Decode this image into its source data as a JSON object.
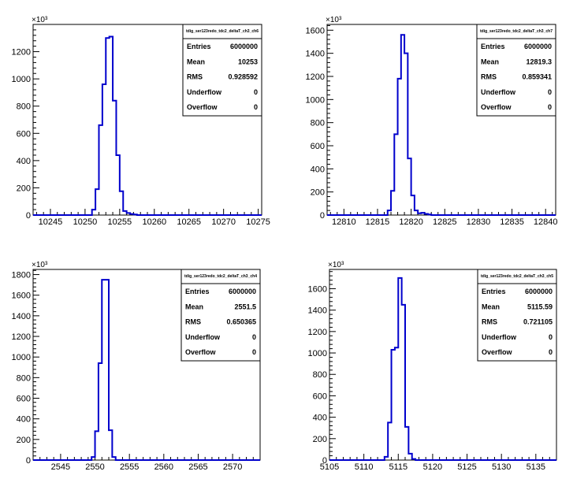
{
  "page": {
    "background": "#ffffff"
  },
  "style": {
    "histogram_color": "#0000cc",
    "axis_color": "#000000"
  },
  "chart_data": [
    {
      "type": "bar",
      "subtype": "histogram",
      "title": "",
      "y_exponent_label": "×10³",
      "stats_box": {
        "title": "tdig_ser123redo_tdc2_deltaT_ch3_ch6",
        "rows": [
          {
            "label": "Entries",
            "value": "6000000"
          },
          {
            "label": "Mean",
            "value": "10253"
          },
          {
            "label": "RMS",
            "value": "0.928592"
          },
          {
            "label": "Underflow",
            "value": "0"
          },
          {
            "label": "Overflow",
            "value": "0"
          }
        ]
      },
      "xlim": [
        10242.5,
        10275.5
      ],
      "ylim": [
        0,
        1400
      ],
      "x_ticks": [
        10245,
        10250,
        10255,
        10260,
        10265,
        10270,
        10275
      ],
      "y_ticks": [
        0,
        200,
        400,
        600,
        800,
        1000,
        1200
      ],
      "bin_width": 0.5,
      "bins": [
        [
          10251.0,
          40
        ],
        [
          10251.5,
          190
        ],
        [
          10252.0,
          660
        ],
        [
          10252.5,
          960
        ],
        [
          10253.0,
          1300
        ],
        [
          10253.5,
          1310
        ],
        [
          10254.0,
          840
        ],
        [
          10254.5,
          440
        ],
        [
          10255.0,
          175
        ],
        [
          10255.5,
          30
        ],
        [
          10256.0,
          15
        ],
        [
          10256.5,
          8
        ],
        [
          10257.0,
          4
        ]
      ]
    },
    {
      "type": "bar",
      "subtype": "histogram",
      "title": "",
      "y_exponent_label": "×10³",
      "stats_box": {
        "title": "tdig_ser123redo_tdc2_deltaT_ch3_ch7",
        "rows": [
          {
            "label": "Entries",
            "value": "6000000"
          },
          {
            "label": "Mean",
            "value": "12819.3"
          },
          {
            "label": "RMS",
            "value": "0.859341"
          },
          {
            "label": "Underflow",
            "value": "0"
          },
          {
            "label": "Overflow",
            "value": "0"
          }
        ]
      },
      "xlim": [
        12807.5,
        12841.5
      ],
      "ylim": [
        0,
        1650
      ],
      "x_ticks": [
        12810,
        12815,
        12820,
        12825,
        12830,
        12835,
        12840
      ],
      "y_ticks": [
        0,
        200,
        400,
        600,
        800,
        1000,
        1200,
        1400,
        1600
      ],
      "bin_width": 0.5,
      "bins": [
        [
          12816.5,
          40
        ],
        [
          12817.0,
          210
        ],
        [
          12817.5,
          700
        ],
        [
          12818.0,
          1180
        ],
        [
          12818.5,
          1560
        ],
        [
          12819.0,
          1400
        ],
        [
          12819.5,
          490
        ],
        [
          12820.0,
          170
        ],
        [
          12820.5,
          40
        ],
        [
          12821.0,
          15
        ],
        [
          12821.5,
          20
        ],
        [
          12822.0,
          10
        ],
        [
          12822.5,
          5
        ]
      ]
    },
    {
      "type": "bar",
      "subtype": "histogram",
      "title": "",
      "y_exponent_label": "×10³",
      "stats_box": {
        "title": "tdig_ser123redo_tdc2_deltaT_ch3_ch4",
        "rows": [
          {
            "label": "Entries",
            "value": "6000000"
          },
          {
            "label": "Mean",
            "value": "2551.5"
          },
          {
            "label": "RMS",
            "value": "0.650365"
          },
          {
            "label": "Underflow",
            "value": "0"
          },
          {
            "label": "Overflow",
            "value": "0"
          }
        ]
      },
      "xlim": [
        2541,
        2574
      ],
      "ylim": [
        0,
        1850
      ],
      "x_ticks": [
        2545,
        2550,
        2555,
        2560,
        2565,
        2570
      ],
      "y_ticks": [
        0,
        200,
        400,
        600,
        800,
        1000,
        1200,
        1400,
        1600,
        1800
      ],
      "bin_width": 0.5,
      "bins": [
        [
          2549.5,
          30
        ],
        [
          2550.0,
          280
        ],
        [
          2550.5,
          940
        ],
        [
          2551.0,
          1750
        ],
        [
          2551.5,
          1750
        ],
        [
          2552.0,
          290
        ],
        [
          2552.5,
          30
        ]
      ]
    },
    {
      "type": "bar",
      "subtype": "histogram",
      "title": "",
      "y_exponent_label": "×10³",
      "stats_box": {
        "title": "tdig_ser123redo_tdc2_deltaT_ch3_ch5",
        "rows": [
          {
            "label": "Entries",
            "value": "6000000"
          },
          {
            "label": "Mean",
            "value": "5115.59"
          },
          {
            "label": "RMS",
            "value": "0.721105"
          },
          {
            "label": "Underflow",
            "value": "0"
          },
          {
            "label": "Overflow",
            "value": "0"
          }
        ]
      },
      "xlim": [
        5105,
        5138
      ],
      "ylim": [
        0,
        1780
      ],
      "x_ticks": [
        5105,
        5110,
        5115,
        5120,
        5125,
        5130,
        5135
      ],
      "y_ticks": [
        0,
        200,
        400,
        600,
        800,
        1000,
        1200,
        1400,
        1600
      ],
      "bin_width": 0.5,
      "bins": [
        [
          5113.0,
          30
        ],
        [
          5113.5,
          350
        ],
        [
          5114.0,
          1030
        ],
        [
          5114.5,
          1050
        ],
        [
          5115.0,
          1700
        ],
        [
          5115.5,
          1450
        ],
        [
          5116.0,
          310
        ],
        [
          5116.5,
          60
        ],
        [
          5117.0,
          10
        ]
      ]
    }
  ]
}
